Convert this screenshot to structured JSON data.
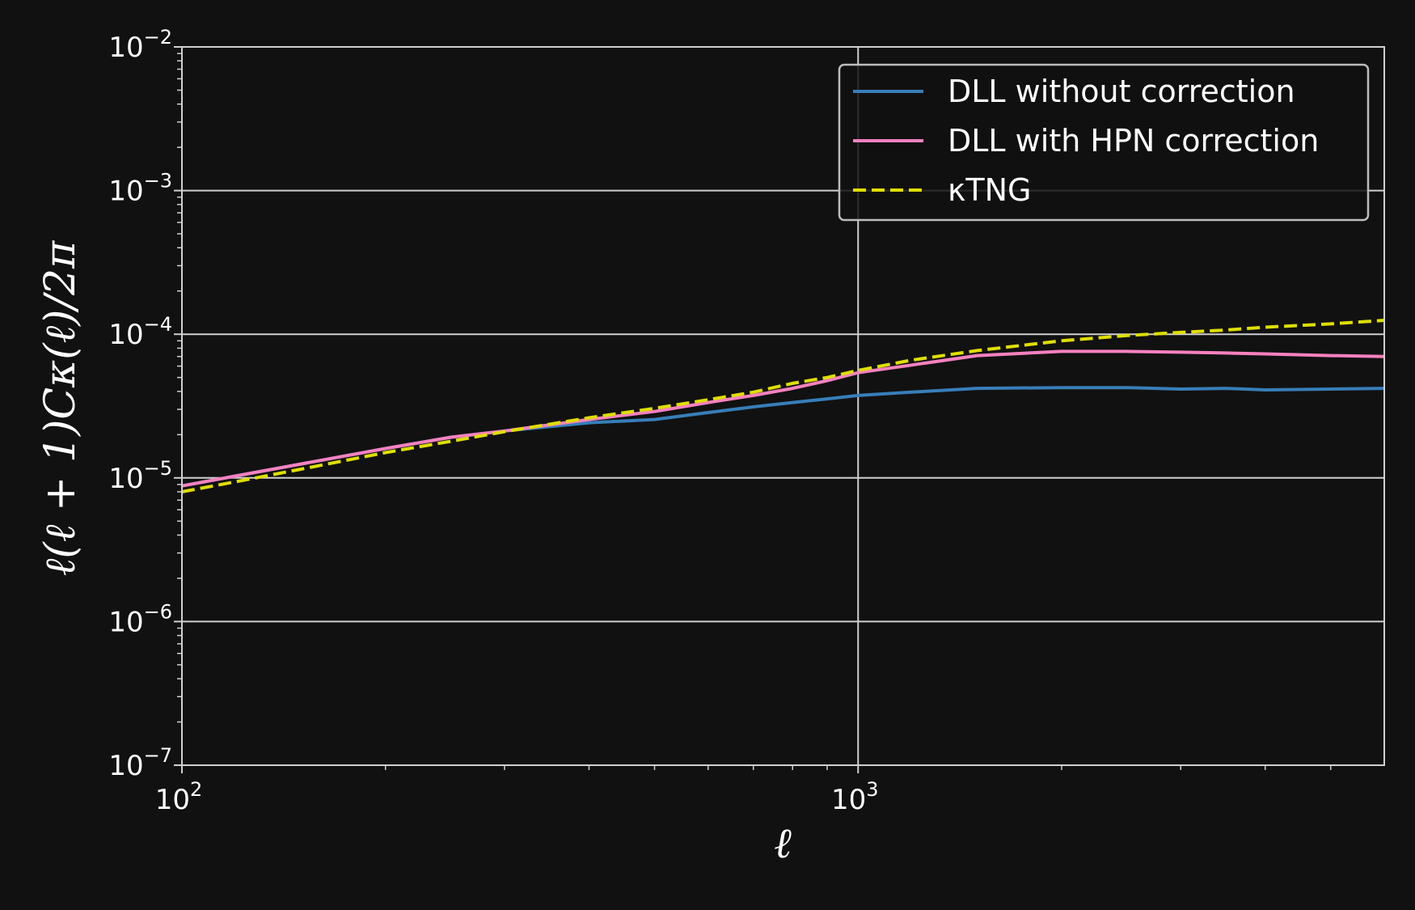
{
  "chart_data": {
    "type": "line",
    "xlabel": "ℓ",
    "ylabel": "ℓ(ℓ + 1)Cκ(ℓ)/2π",
    "xscale": "log",
    "yscale": "log",
    "xlim": [
      100,
      6000
    ],
    "ylim": [
      1e-07,
      0.01
    ],
    "x_ticks": [
      {
        "value": 100,
        "base": "10",
        "exp": "2"
      },
      {
        "value": 1000,
        "base": "10",
        "exp": "3"
      }
    ],
    "y_ticks": [
      {
        "value": 1e-07,
        "base": "10",
        "exp": "−7"
      },
      {
        "value": 1e-06,
        "base": "10",
        "exp": "−6"
      },
      {
        "value": 1e-05,
        "base": "10",
        "exp": "−5"
      },
      {
        "value": 0.0001,
        "base": "10",
        "exp": "−4"
      },
      {
        "value": 0.001,
        "base": "10",
        "exp": "−3"
      },
      {
        "value": 0.01,
        "base": "10",
        "exp": "−2"
      }
    ],
    "grid": true,
    "legend_position": "top-right",
    "x": [
      100,
      120,
      150,
      200,
      250,
      300,
      400,
      500,
      600,
      700,
      800,
      900,
      1000,
      1200,
      1500,
      2000,
      2500,
      3000,
      3500,
      4000,
      5000,
      6000
    ],
    "series": [
      {
        "name": "DLL without correction",
        "color": "#377eb8",
        "style": "solid",
        "values": [
          8.8e-06,
          1.03e-05,
          1.25e-05,
          1.6e-05,
          1.92e-05,
          2.12e-05,
          2.42e-05,
          2.55e-05,
          2.85e-05,
          3.12e-05,
          3.35e-05,
          3.55e-05,
          3.75e-05,
          3.95e-05,
          4.2e-05,
          4.25e-05,
          4.25e-05,
          4.15e-05,
          4.2e-05,
          4.1e-05,
          4.15e-05,
          4.2e-05
        ]
      },
      {
        "name": "DLL with HPN correction",
        "color": "#f781bf",
        "style": "solid",
        "values": [
          8.8e-06,
          1.03e-05,
          1.25e-05,
          1.6e-05,
          1.92e-05,
          2.12e-05,
          2.55e-05,
          2.9e-05,
          3.35e-05,
          3.75e-05,
          4.2e-05,
          4.75e-05,
          5.4e-05,
          6.1e-05,
          7.1e-05,
          7.6e-05,
          7.6e-05,
          7.5e-05,
          7.4e-05,
          7.3e-05,
          7.1e-05,
          7e-05
        ]
      },
      {
        "name": "κTNG",
        "color": "#dede00",
        "style": "dashed",
        "values": [
          8e-06,
          9.4e-06,
          1.15e-05,
          1.5e-05,
          1.8e-05,
          2.1e-05,
          2.62e-05,
          3.05e-05,
          3.5e-05,
          3.95e-05,
          4.55e-05,
          5e-05,
          5.6e-05,
          6.6e-05,
          7.7e-05,
          9e-05,
          9.8e-05,
          0.000103,
          0.000107,
          0.000112,
          0.000118,
          0.000125
        ]
      }
    ]
  }
}
